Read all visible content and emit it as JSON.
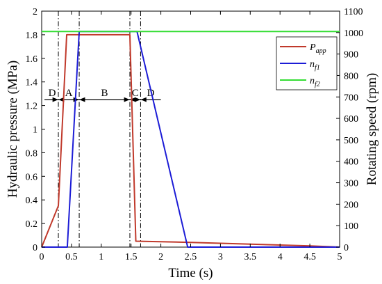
{
  "chart_data": {
    "type": "line",
    "xlabel": "Time (s)",
    "ylabel": "Hydraulic pressure (MPa)",
    "y2label": "Rotating speed (rpm)",
    "xlim": [
      0,
      5
    ],
    "ylim": [
      0,
      2
    ],
    "y2lim": [
      0,
      1100
    ],
    "x_ticks": [
      "0",
      "0.5",
      "1",
      "1.5",
      "2",
      "2.5",
      "3",
      "3.5",
      "4",
      "4.5",
      "5"
    ],
    "y_ticks": [
      "0",
      "0.2",
      "0.4",
      "0.6",
      "0.8",
      "1",
      "1.2",
      "1.4",
      "1.6",
      "1.8",
      "2"
    ],
    "y2_ticks": [
      "0",
      "100",
      "200",
      "300",
      "400",
      "500",
      "600",
      "700",
      "800",
      "900",
      "1000",
      "1100"
    ],
    "grid": false,
    "legend_position": "top-right",
    "series": [
      {
        "name": "P",
        "name_sub": "app",
        "axis": "left",
        "color": "#c0392b",
        "points": [
          [
            0,
            0
          ],
          [
            0.28,
            0.35
          ],
          [
            0.42,
            1.8
          ],
          [
            1.48,
            1.8
          ],
          [
            1.58,
            0.05
          ],
          [
            2.5,
            0.04
          ],
          [
            3.5,
            0.025
          ],
          [
            4.5,
            0.01
          ],
          [
            5,
            0
          ]
        ]
      },
      {
        "name": "n",
        "name_sub": "f1",
        "axis": "right",
        "color": "#1c1cd6",
        "points": [
          [
            0,
            0
          ],
          [
            0.43,
            0
          ],
          [
            0.63,
            1005
          ],
          [
            1.6,
            1005
          ],
          [
            2.45,
            0
          ],
          [
            5,
            0
          ]
        ]
      },
      {
        "name": "n",
        "name_sub": "f2",
        "axis": "right",
        "color": "#33dd33",
        "points": [
          [
            0,
            1005
          ],
          [
            5,
            1005
          ]
        ]
      }
    ],
    "phase_boundaries": [
      0.28,
      0.63,
      1.48,
      1.66
    ],
    "phase_arrow_y": 1.25,
    "phases": [
      {
        "label": "D",
        "from": 0,
        "to": 0.28
      },
      {
        "label": "A",
        "from": 0.28,
        "to": 0.63
      },
      {
        "label": "B",
        "from": 0.63,
        "to": 1.48
      },
      {
        "label": "C",
        "from": 1.48,
        "to": 1.66
      },
      {
        "label": "D",
        "from": 1.66,
        "to": 2.0
      }
    ]
  }
}
